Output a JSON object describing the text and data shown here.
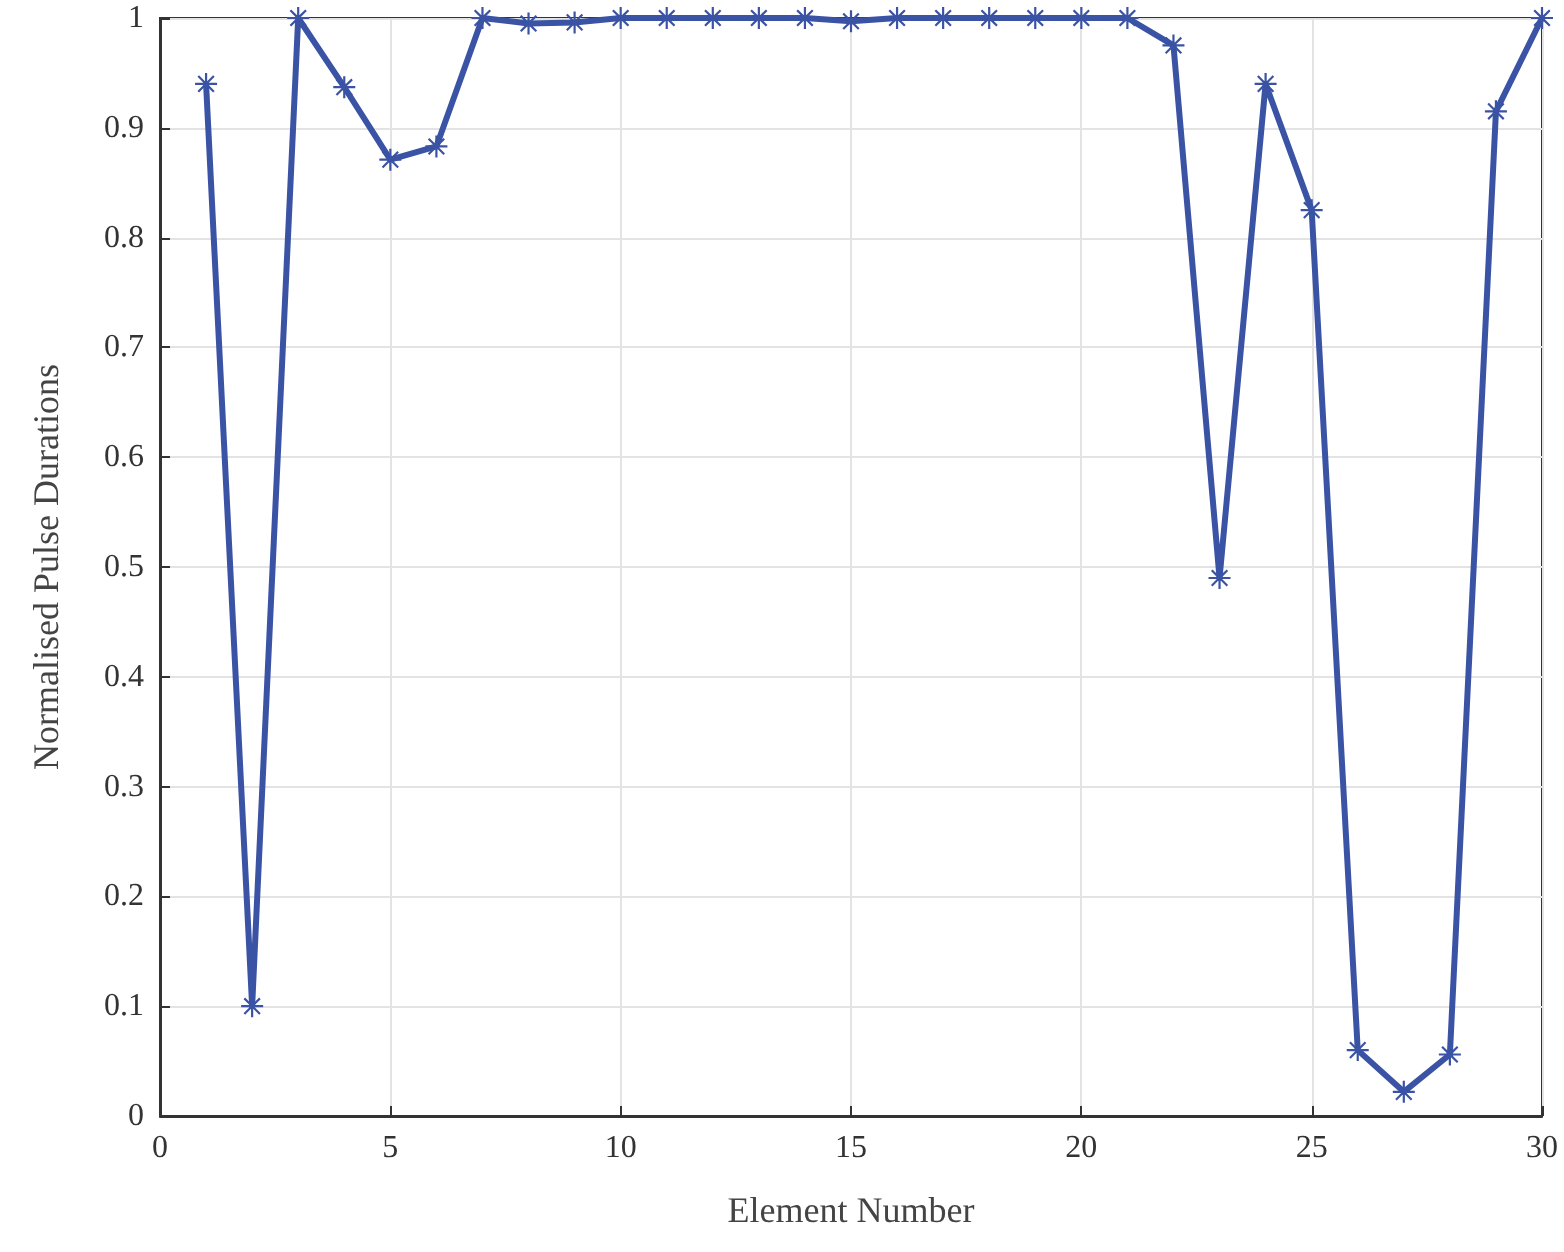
{
  "chart_data": {
    "type": "line",
    "xlabel": "Element Number",
    "ylabel": "Normalised Pulse Durations",
    "x": [
      1,
      2,
      3,
      4,
      5,
      6,
      7,
      8,
      9,
      10,
      11,
      12,
      13,
      14,
      15,
      16,
      17,
      18,
      19,
      20,
      21,
      22,
      23,
      24,
      25,
      26,
      27,
      28,
      29,
      30
    ],
    "series": [
      {
        "color": "#3a53a4",
        "values": [
          0.94,
          0.1,
          1,
          0.937,
          0.871,
          0.883,
          1,
          0.995,
          0.996,
          1,
          1,
          1,
          1,
          1,
          0.997,
          1,
          1,
          1,
          1,
          1,
          1,
          0.975,
          0.49,
          0.94,
          0.825,
          0.06,
          0.022,
          0.056,
          0.915,
          1
        ]
      }
    ],
    "xlim": [
      0,
      30
    ],
    "xticks": [
      0,
      5,
      10,
      15,
      20,
      25,
      30
    ],
    "ylim": [
      0,
      1
    ],
    "yticks": [
      0,
      0.1,
      0.2,
      0.3,
      0.4,
      0.5,
      0.6,
      0.7,
      0.8,
      0.9,
      1
    ],
    "grid": true,
    "marker": "star",
    "line_style": "solid"
  }
}
